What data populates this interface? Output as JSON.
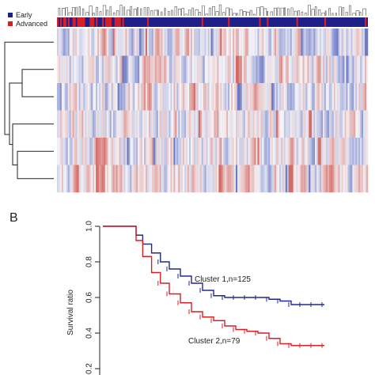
{
  "panel_b": {
    "letter": "B"
  },
  "panel_a": {
    "legend": [
      {
        "label": "Early",
        "color": "#1f1f8a"
      },
      {
        "label": "Advanced",
        "color": "#d71f26"
      }
    ],
    "row_count": 6,
    "stage_colors": {
      "early": "#1f1f8a",
      "advanced": "#d71f26"
    },
    "heatmap_colors": {
      "low": "#3548b0",
      "mid": "#f4f4f8",
      "high": "#c7352b"
    }
  },
  "chart_data": [
    {
      "type": "line",
      "subtype": "kaplan-meier",
      "title": "",
      "xlabel": "",
      "ylabel": "Survival ratio",
      "ylim": [
        0.2,
        1.0
      ],
      "xlim": [
        0,
        100
      ],
      "yticks": [
        "1.0",
        "0.8",
        "0.6",
        "0.4",
        "0.2"
      ],
      "grid": false,
      "series": [
        {
          "name": "Cluster 1,n=125",
          "color": "#1f2a8a",
          "x": [
            0,
            12,
            15,
            18,
            22,
            26,
            30,
            35,
            40,
            45,
            50,
            55,
            60,
            65,
            70,
            75,
            80,
            85,
            90,
            95,
            100
          ],
          "y": [
            1.0,
            1.0,
            0.95,
            0.9,
            0.85,
            0.8,
            0.76,
            0.72,
            0.68,
            0.64,
            0.61,
            0.6,
            0.6,
            0.6,
            0.6,
            0.59,
            0.58,
            0.56,
            0.56,
            0.56,
            0.56
          ]
        },
        {
          "name": "Cluster 2,n=79",
          "color": "#d71f26",
          "x": [
            0,
            12,
            15,
            18,
            22,
            26,
            30,
            35,
            40,
            45,
            50,
            55,
            60,
            65,
            70,
            75,
            80,
            85,
            90,
            95,
            100
          ],
          "y": [
            1.0,
            1.0,
            0.92,
            0.83,
            0.74,
            0.68,
            0.62,
            0.57,
            0.52,
            0.49,
            0.47,
            0.44,
            0.42,
            0.41,
            0.4,
            0.37,
            0.34,
            0.33,
            0.33,
            0.33,
            0.33
          ]
        }
      ]
    }
  ]
}
